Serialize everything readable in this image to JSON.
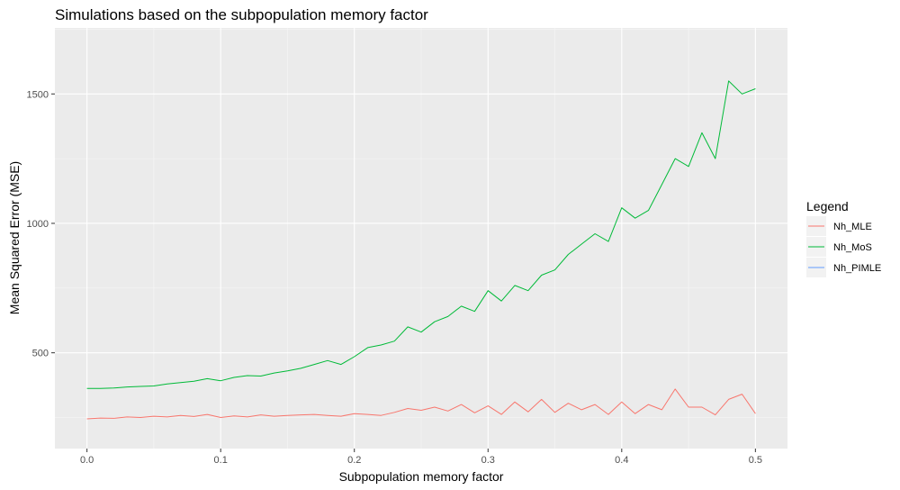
{
  "chart_data": {
    "type": "line",
    "title": "Simulations based on the subpopulation memory factor",
    "xlabel": "Subpopulation memory factor",
    "ylabel": "Mean Squared Error (MSE)",
    "xlim": [
      -0.024,
      0.524
    ],
    "ylim": [
      130,
      1755
    ],
    "x_ticks": [
      0.0,
      0.1,
      0.2,
      0.3,
      0.4,
      0.5
    ],
    "x_tick_labels": [
      "0.0",
      "0.1",
      "0.2",
      "0.3",
      "0.4",
      "0.5"
    ],
    "y_ticks": [
      500,
      1000,
      1500
    ],
    "y_tick_labels": [
      "500",
      "1000",
      "1500"
    ],
    "grid": true,
    "legend": {
      "title": "Legend",
      "position": "right"
    },
    "series": [
      {
        "name": "Nh_MLE",
        "color": "#F8766D",
        "x": [
          0.0,
          0.01,
          0.02,
          0.03,
          0.04,
          0.05,
          0.06,
          0.07,
          0.08,
          0.09,
          0.1,
          0.11,
          0.12,
          0.13,
          0.14,
          0.15,
          0.16,
          0.17,
          0.18,
          0.19,
          0.2,
          0.21,
          0.22,
          0.23,
          0.24,
          0.25,
          0.26,
          0.27,
          0.28,
          0.29,
          0.3,
          0.31,
          0.32,
          0.33,
          0.34,
          0.35,
          0.36,
          0.37,
          0.38,
          0.39,
          0.4,
          0.41,
          0.42,
          0.43,
          0.44,
          0.45,
          0.46,
          0.47,
          0.48,
          0.49,
          0.5
        ],
        "values": [
          245,
          248,
          247,
          252,
          250,
          255,
          252,
          258,
          254,
          262,
          250,
          256,
          252,
          260,
          255,
          258,
          260,
          262,
          258,
          255,
          265,
          262,
          258,
          270,
          285,
          278,
          290,
          275,
          300,
          268,
          295,
          262,
          310,
          272,
          320,
          270,
          305,
          280,
          300,
          262,
          310,
          265,
          300,
          280,
          360,
          290,
          290,
          260,
          320,
          340,
          265
        ]
      },
      {
        "name": "Nh_MoS",
        "color": "#00BA38",
        "x": [
          0.0,
          0.01,
          0.02,
          0.03,
          0.04,
          0.05,
          0.06,
          0.07,
          0.08,
          0.09,
          0.1,
          0.11,
          0.12,
          0.13,
          0.14,
          0.15,
          0.16,
          0.17,
          0.18,
          0.19,
          0.2,
          0.21,
          0.22,
          0.23,
          0.24,
          0.25,
          0.26,
          0.27,
          0.28,
          0.29,
          0.3,
          0.31,
          0.32,
          0.33,
          0.34,
          0.35,
          0.36,
          0.37,
          0.38,
          0.39,
          0.4,
          0.41,
          0.42,
          0.43,
          0.44,
          0.45,
          0.46,
          0.47,
          0.48,
          0.49,
          0.5
        ],
        "values": [
          362,
          362,
          364,
          368,
          370,
          372,
          380,
          385,
          390,
          400,
          392,
          405,
          412,
          410,
          422,
          430,
          440,
          455,
          470,
          455,
          485,
          520,
          530,
          545,
          600,
          580,
          620,
          640,
          680,
          660,
          740,
          700,
          760,
          740,
          800,
          820,
          880,
          920,
          960,
          930,
          1060,
          1020,
          1050,
          1150,
          1250,
          1220,
          1350,
          1250,
          1550,
          1500,
          1520
        ]
      },
      {
        "name": "Nh_PIMLE",
        "color": "#619CFF",
        "x": [],
        "values": []
      }
    ]
  }
}
